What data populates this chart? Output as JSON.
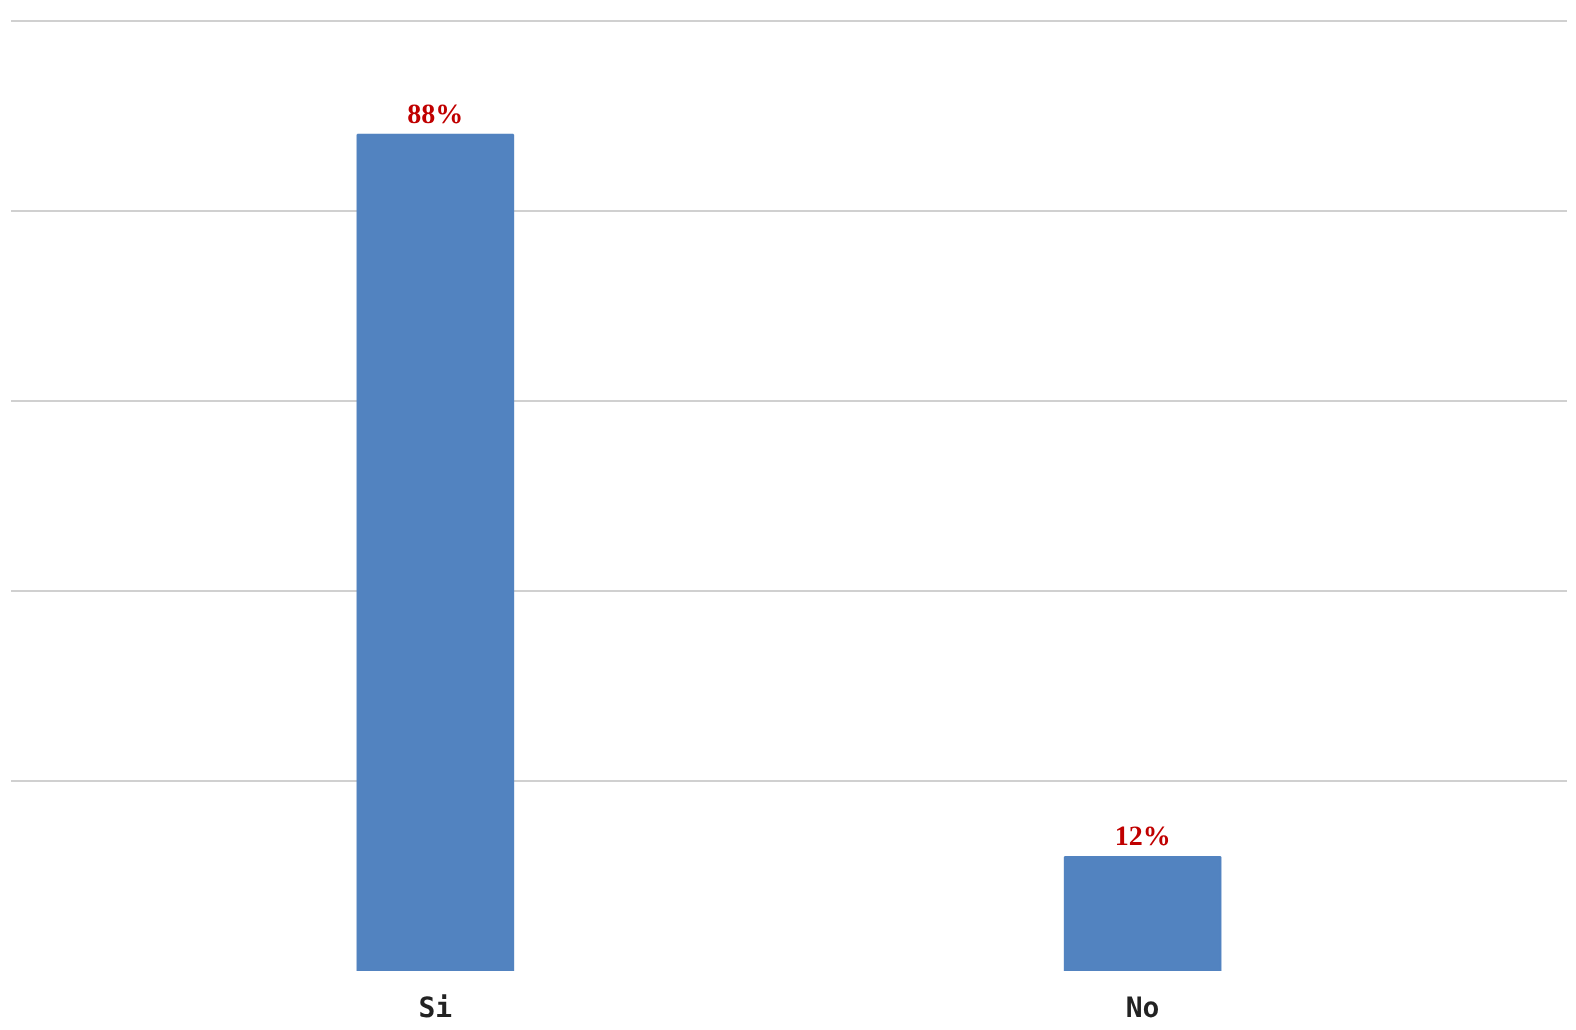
{
  "chart_data": {
    "type": "bar",
    "categories": [
      "Si",
      "No"
    ],
    "values": [
      88,
      12
    ],
    "color": "#5283c0",
    "data_labels": true,
    "value_labels": [
      "88%",
      "12%"
    ],
    "grid": "y",
    "tick_labels": "x"
  }
}
